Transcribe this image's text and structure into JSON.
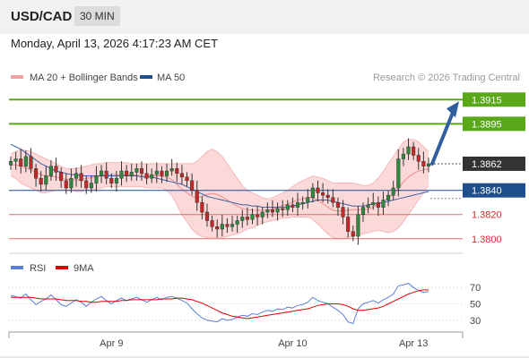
{
  "header": {
    "symbol": "USD/CAD",
    "timeframe": "30 MIN"
  },
  "datetime": "Monday, April 13, 2026 4:17:23 AM CET",
  "colors": {
    "resistance": "#5aa81a",
    "pivot": "#1f4e8c",
    "support": "#e86b6b",
    "current": "#333333",
    "bollinger_fill": "#fbd9d9",
    "ma20": "#f08a8a",
    "ma50": "#3a5fa8",
    "arrow": "#2f5f9e",
    "rsi": "#5a7fd6",
    "rsi_ma": "#e00000",
    "candle_up": "#2e8b3d",
    "candle_down": "#c62828"
  },
  "chart_data": [
    {
      "type": "candlestick",
      "legend": [
        {
          "name": "MA 20 + Bollinger Bands",
          "color": "#f4a0a0"
        },
        {
          "name": "MA 50",
          "color": "#1f4e8c"
        }
      ],
      "watermark": "Research © 2026 Trading Central",
      "ylim": [
        1.3788,
        1.393
      ],
      "x_ticks": [
        "Apr 9",
        "Apr 10",
        "Apr 13"
      ],
      "levels": [
        {
          "value": 1.3915,
          "label": "1.3915",
          "kind": "resistance"
        },
        {
          "value": 1.3895,
          "label": "1.3895",
          "kind": "resistance"
        },
        {
          "value": 1.3862,
          "label": "1.3862",
          "kind": "current"
        },
        {
          "value": 1.384,
          "label": "1.3840",
          "kind": "pivot"
        },
        {
          "value": 1.382,
          "label": "1.3820",
          "kind": "support"
        },
        {
          "value": 1.38,
          "label": "1.3800",
          "kind": "support"
        }
      ],
      "close": [
        1.3864,
        1.3866,
        1.386,
        1.3868,
        1.3858,
        1.385,
        1.3845,
        1.3852,
        1.386,
        1.3855,
        1.3848,
        1.3842,
        1.385,
        1.3854,
        1.3848,
        1.3842,
        1.3846,
        1.3852,
        1.3856,
        1.385,
        1.3846,
        1.385,
        1.3856,
        1.3852,
        1.3855,
        1.3858,
        1.3854,
        1.385,
        1.3853,
        1.3856,
        1.3852,
        1.3856,
        1.3858,
        1.3854,
        1.3851,
        1.3848,
        1.384,
        1.383,
        1.3822,
        1.3815,
        1.381,
        1.3808,
        1.3812,
        1.381,
        1.3812,
        1.3815,
        1.3818,
        1.3816,
        1.382,
        1.3818,
        1.3822,
        1.3824,
        1.3822,
        1.3825,
        1.3824,
        1.3828,
        1.3826,
        1.383,
        1.383,
        1.3834,
        1.3842,
        1.3838,
        1.3836,
        1.3834,
        1.383,
        1.3826,
        1.3818,
        1.3806,
        1.3802,
        1.382,
        1.3826,
        1.3828,
        1.383,
        1.3826,
        1.3832,
        1.3836,
        1.3842,
        1.3866,
        1.387,
        1.3876,
        1.3869,
        1.3864,
        1.386,
        1.3862
      ],
      "ma50": [
        1.3878,
        1.3876,
        1.3874,
        1.3871,
        1.3868,
        1.3865,
        1.3862,
        1.386,
        1.3858,
        1.3856,
        1.3855,
        1.3854,
        1.3853,
        1.3853,
        1.3852,
        1.3852,
        1.3852,
        1.3852,
        1.3852,
        1.3852,
        1.3852,
        1.3852,
        1.3852,
        1.3852,
        1.3852,
        1.3852,
        1.3851,
        1.3851,
        1.3851,
        1.385,
        1.3849,
        1.3848,
        1.3847,
        1.3846,
        1.3845,
        1.3843,
        1.3841,
        1.3839,
        1.3837,
        1.3835,
        1.3834,
        1.3833,
        1.3832,
        1.3831,
        1.383,
        1.3829,
        1.3828,
        1.3828,
        1.3827,
        1.3827,
        1.3826,
        1.3826,
        1.3826,
        1.3826,
        1.3826,
        1.3826,
        1.3827,
        1.3828,
        1.3829,
        1.383,
        1.3831,
        1.3832,
        1.3832,
        1.3832,
        1.3831,
        1.383,
        1.3829,
        1.3828,
        1.3827,
        1.3827,
        1.3827,
        1.3828,
        1.3829,
        1.3829,
        1.383,
        1.3831,
        1.3832,
        1.3833,
        1.3834,
        1.3835,
        1.3836,
        1.3837,
        1.3838,
        1.3839
      ],
      "bb_upper": [
        1.387,
        1.3872,
        1.3874,
        1.3873,
        1.3872,
        1.387,
        1.3868,
        1.3866,
        1.3864,
        1.3862,
        1.386,
        1.3858,
        1.3858,
        1.3858,
        1.3859,
        1.386,
        1.3861,
        1.3862,
        1.3862,
        1.3863,
        1.3863,
        1.3863,
        1.3863,
        1.3863,
        1.3862,
        1.3862,
        1.3862,
        1.3862,
        1.3862,
        1.3862,
        1.3862,
        1.3862,
        1.3862,
        1.3862,
        1.3862,
        1.3862,
        1.3862,
        1.3864,
        1.3868,
        1.3872,
        1.3874,
        1.3872,
        1.3868,
        1.3862,
        1.3856,
        1.385,
        1.3844,
        1.384,
        1.3838,
        1.3836,
        1.3834,
        1.3833,
        1.3834,
        1.3836,
        1.3838,
        1.384,
        1.3843,
        1.3846,
        1.3848,
        1.385,
        1.3852,
        1.3851,
        1.385,
        1.3848,
        1.3846,
        1.3846,
        1.3846,
        1.3846,
        1.3846,
        1.3845,
        1.3844,
        1.3844,
        1.3846,
        1.385,
        1.3856,
        1.3862,
        1.3868,
        1.3874,
        1.388,
        1.3882,
        1.3882,
        1.388,
        1.3876,
        1.3872
      ],
      "bb_lower": [
        1.3852,
        1.385,
        1.3846,
        1.3844,
        1.3842,
        1.384,
        1.3838,
        1.3838,
        1.3839,
        1.384,
        1.384,
        1.384,
        1.384,
        1.3839,
        1.3839,
        1.384,
        1.384,
        1.3841,
        1.3842,
        1.3843,
        1.3843,
        1.3843,
        1.3843,
        1.3843,
        1.3843,
        1.3843,
        1.3843,
        1.3842,
        1.3842,
        1.3842,
        1.3842,
        1.384,
        1.3836,
        1.3828,
        1.382,
        1.3814,
        1.3808,
        1.3804,
        1.3802,
        1.3801,
        1.3801,
        1.3801,
        1.3801,
        1.3802,
        1.3803,
        1.3804,
        1.3806,
        1.3808,
        1.3809,
        1.3811,
        1.3813,
        1.3814,
        1.3815,
        1.3816,
        1.3817,
        1.3817,
        1.3818,
        1.3818,
        1.3818,
        1.3818,
        1.3816,
        1.3812,
        1.3808,
        1.3804,
        1.3801,
        1.38,
        1.38,
        1.3801,
        1.3802,
        1.3803,
        1.3804,
        1.3805,
        1.3806,
        1.3807,
        1.3806,
        1.3805,
        1.3806,
        1.3809,
        1.3814,
        1.382,
        1.3826,
        1.3832,
        1.3838,
        1.3844
      ]
    },
    {
      "type": "line",
      "legend": [
        {
          "name": "RSI",
          "color": "#5a7fd6"
        },
        {
          "name": "9MA",
          "color": "#e00000"
        }
      ],
      "ylim": [
        20,
        80
      ],
      "y_ticks": [
        70,
        50,
        30
      ],
      "rsi": [
        60,
        59,
        57,
        62,
        55,
        49,
        53,
        56,
        61,
        55,
        49,
        47,
        51,
        55,
        52,
        47,
        52,
        56,
        59,
        54,
        50,
        54,
        57,
        54,
        56,
        58,
        55,
        52,
        55,
        58,
        55,
        58,
        59,
        57,
        54,
        51,
        44,
        38,
        33,
        30,
        29,
        28,
        32,
        30,
        31,
        34,
        36,
        35,
        38,
        37,
        40,
        42,
        41,
        44,
        43,
        46,
        45,
        48,
        49,
        52,
        58,
        54,
        52,
        50,
        46,
        42,
        37,
        28,
        26,
        44,
        50,
        52,
        54,
        51,
        55,
        58,
        62,
        72,
        73,
        75,
        70,
        66,
        64,
        65
      ],
      "rsi_ma": [
        58,
        58,
        58,
        58,
        58,
        57,
        56,
        56,
        56,
        56,
        55,
        54,
        54,
        54,
        53,
        53,
        52,
        52,
        53,
        53,
        53,
        53,
        54,
        54,
        55,
        55,
        55,
        55,
        55,
        55,
        56,
        56,
        56,
        57,
        57,
        56,
        55,
        53,
        51,
        48,
        45,
        42,
        39,
        37,
        35,
        34,
        33,
        32,
        33,
        34,
        35,
        36,
        37,
        38,
        39,
        40,
        41,
        42,
        43,
        44,
        46,
        48,
        49,
        50,
        50,
        50,
        49,
        47,
        44,
        42,
        42,
        43,
        44,
        45,
        47,
        50,
        53,
        56,
        59,
        62,
        64,
        66,
        67,
        67
      ]
    }
  ]
}
